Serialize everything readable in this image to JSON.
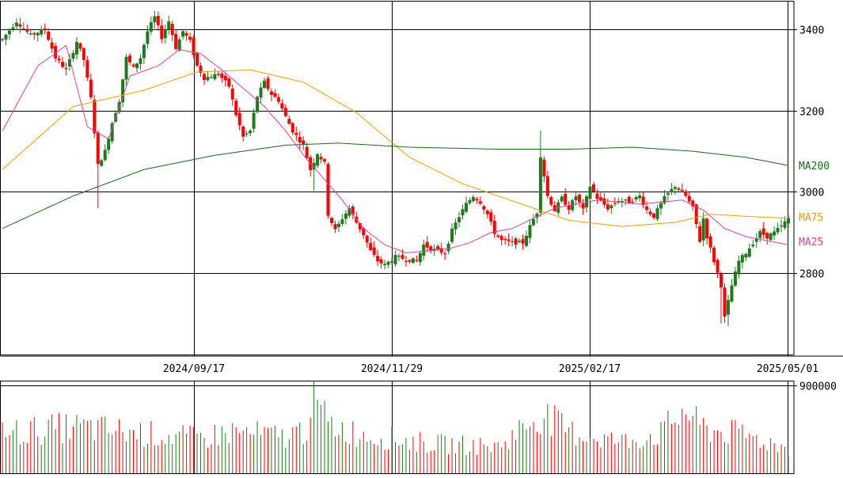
{
  "chart_data": {
    "type": "candlestick",
    "price_axis": {
      "ticks": [
        "3400",
        "3200",
        "3000",
        "2800"
      ],
      "range": [
        2600,
        3470
      ]
    },
    "date_axis": {
      "ticks": [
        "2024/09/17",
        "2024/11/29",
        "2025/02/17",
        "2025/05/01"
      ]
    },
    "volume_axis": {
      "ticks": [
        "900000"
      ],
      "range": [
        0,
        950000
      ]
    },
    "legend": [
      {
        "name": "MA200",
        "color": "#1a6b1a"
      },
      {
        "name": "MA75",
        "color": "#f0a000"
      },
      {
        "name": "MA25",
        "color": "#e040a0"
      }
    ],
    "colors": {
      "up": "#1f7a1f",
      "down": "#ff0000",
      "grid": "#000000"
    },
    "anchors": [
      [
        0,
        3375
      ],
      [
        4,
        3420
      ],
      [
        8,
        3385
      ],
      [
        12,
        3400
      ],
      [
        15,
        3330
      ],
      [
        18,
        3300
      ],
      [
        21,
        3370
      ],
      [
        23,
        3325
      ],
      [
        25,
        3230
      ],
      [
        27,
        3065
      ],
      [
        29,
        3100
      ],
      [
        31,
        3170
      ],
      [
        33,
        3225
      ],
      [
        35,
        3330
      ],
      [
        37,
        3305
      ],
      [
        39,
        3330
      ],
      [
        41,
        3395
      ],
      [
        43,
        3430
      ],
      [
        45,
        3380
      ],
      [
        47,
        3420
      ],
      [
        49,
        3355
      ],
      [
        51,
        3395
      ],
      [
        53,
        3370
      ],
      [
        55,
        3310
      ],
      [
        57,
        3280
      ],
      [
        59,
        3285
      ],
      [
        61,
        3290
      ],
      [
        64,
        3260
      ],
      [
        66,
        3190
      ],
      [
        68,
        3135
      ],
      [
        70,
        3150
      ],
      [
        72,
        3235
      ],
      [
        74,
        3270
      ],
      [
        76,
        3240
      ],
      [
        78,
        3225
      ],
      [
        80,
        3185
      ],
      [
        82,
        3150
      ],
      [
        85,
        3115
      ],
      [
        87,
        3055
      ],
      [
        89,
        3095
      ],
      [
        91,
        3070
      ],
      [
        92,
        2945
      ],
      [
        94,
        2905
      ],
      [
        96,
        2935
      ],
      [
        98,
        2960
      ],
      [
        100,
        2925
      ],
      [
        102,
        2895
      ],
      [
        104,
        2855
      ],
      [
        106,
        2830
      ],
      [
        108,
        2820
      ],
      [
        111,
        2840
      ],
      [
        114,
        2835
      ],
      [
        117,
        2830
      ],
      [
        119,
        2870
      ],
      [
        121,
        2860
      ],
      [
        123,
        2855
      ],
      [
        125,
        2850
      ],
      [
        127,
        2905
      ],
      [
        129,
        2940
      ],
      [
        131,
        2970
      ],
      [
        133,
        2990
      ],
      [
        135,
        2975
      ],
      [
        137,
        2945
      ],
      [
        139,
        2900
      ],
      [
        141,
        2880
      ],
      [
        144,
        2875
      ],
      [
        147,
        2875
      ],
      [
        149,
        2915
      ],
      [
        151,
        2950
      ],
      [
        152,
        3090
      ],
      [
        154,
        2990
      ],
      [
        156,
        2955
      ],
      [
        158,
        2985
      ],
      [
        160,
        2960
      ],
      [
        162,
        2990
      ],
      [
        164,
        2955
      ],
      [
        166,
        3015
      ],
      [
        168,
        2985
      ],
      [
        171,
        2960
      ],
      [
        174,
        2980
      ],
      [
        177,
        2975
      ],
      [
        180,
        2990
      ],
      [
        182,
        2955
      ],
      [
        184,
        2940
      ],
      [
        187,
        2985
      ],
      [
        190,
        3015
      ],
      [
        193,
        2990
      ],
      [
        195,
        2960
      ],
      [
        197,
        2880
      ],
      [
        198,
        2935
      ],
      [
        199,
        2890
      ],
      [
        201,
        2830
      ],
      [
        203,
        2770
      ],
      [
        204,
        2690
      ],
      [
        206,
        2770
      ],
      [
        208,
        2830
      ],
      [
        210,
        2850
      ],
      [
        212,
        2875
      ],
      [
        214,
        2900
      ],
      [
        216,
        2890
      ],
      [
        218,
        2900
      ],
      [
        220,
        2915
      ],
      [
        222,
        2935
      ]
    ],
    "ma_anchors": {
      "MA25": [
        [
          0,
          3150
        ],
        [
          10,
          3310
        ],
        [
          18,
          3360
        ],
        [
          24,
          3160
        ],
        [
          30,
          3130
        ],
        [
          36,
          3285
        ],
        [
          44,
          3310
        ],
        [
          50,
          3350
        ],
        [
          56,
          3340
        ],
        [
          62,
          3300
        ],
        [
          68,
          3255
        ],
        [
          74,
          3210
        ],
        [
          80,
          3150
        ],
        [
          86,
          3080
        ],
        [
          90,
          3040
        ],
        [
          96,
          2980
        ],
        [
          102,
          2910
        ],
        [
          108,
          2870
        ],
        [
          114,
          2850
        ],
        [
          120,
          2855
        ],
        [
          126,
          2860
        ],
        [
          132,
          2875
        ],
        [
          138,
          2900
        ],
        [
          144,
          2910
        ],
        [
          150,
          2935
        ],
        [
          156,
          2960
        ],
        [
          162,
          2970
        ],
        [
          168,
          2980
        ],
        [
          174,
          2975
        ],
        [
          180,
          2970
        ],
        [
          186,
          2975
        ],
        [
          192,
          2980
        ],
        [
          198,
          2955
        ],
        [
          204,
          2910
        ],
        [
          210,
          2890
        ],
        [
          216,
          2880
        ],
        [
          222,
          2870
        ]
      ],
      "MA75": [
        [
          0,
          3055
        ],
        [
          20,
          3210
        ],
        [
          40,
          3250
        ],
        [
          55,
          3295
        ],
        [
          70,
          3300
        ],
        [
          85,
          3270
        ],
        [
          100,
          3195
        ],
        [
          115,
          3085
        ],
        [
          130,
          3020
        ],
        [
          145,
          2975
        ],
        [
          160,
          2930
        ],
        [
          175,
          2915
        ],
        [
          190,
          2925
        ],
        [
          200,
          2945
        ],
        [
          210,
          2940
        ],
        [
          222,
          2935
        ]
      ],
      "MA200": [
        [
          0,
          2910
        ],
        [
          20,
          2990
        ],
        [
          40,
          3055
        ],
        [
          60,
          3090
        ],
        [
          80,
          3115
        ],
        [
          95,
          3120
        ],
        [
          115,
          3110
        ],
        [
          140,
          3105
        ],
        [
          160,
          3105
        ],
        [
          178,
          3110
        ],
        [
          195,
          3100
        ],
        [
          210,
          3085
        ],
        [
          222,
          3065
        ]
      ]
    },
    "volume_bars": [
      [
        0,
        480000
      ],
      [
        10,
        520000
      ],
      [
        20,
        560000
      ],
      [
        40,
        480000
      ],
      [
        55,
        420000
      ],
      [
        65,
        500000
      ],
      [
        80,
        440000
      ],
      [
        86,
        540000
      ],
      [
        87,
        920000
      ],
      [
        89,
        820000
      ],
      [
        92,
        600000
      ],
      [
        100,
        480000
      ],
      [
        120,
        360000
      ],
      [
        140,
        320000
      ],
      [
        152,
        720000
      ],
      [
        160,
        500000
      ],
      [
        175,
        380000
      ],
      [
        186,
        480000
      ],
      [
        193,
        780000
      ],
      [
        196,
        600000
      ],
      [
        200,
        520000
      ],
      [
        210,
        460000
      ],
      [
        222,
        300000
      ]
    ]
  }
}
